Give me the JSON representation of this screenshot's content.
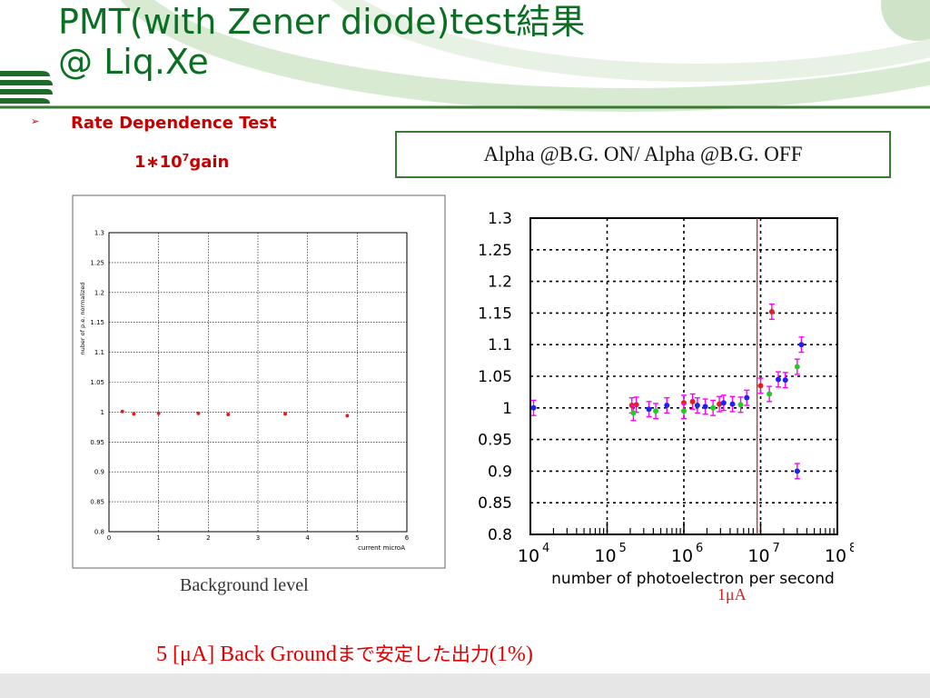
{
  "slide": {
    "title_line1": "PMT(with Zener diode)test結果",
    "title_line2": "@  Liq.Xe",
    "bullet_glyph": "➢",
    "subtitle": "Rate Dependence Test",
    "gain_prefix": "1∗10",
    "gain_exponent": "7",
    "gain_suffix": "gain",
    "note": "Alpha @B.G. ON/ Alpha @B.G. OFF",
    "background_caption": "Background level",
    "marker_caption": "1μA",
    "conclusion_prefix": "5 [μA] Back Ground",
    "conclusion_jp": "まで安定した出力",
    "conclusion_suffix": "(1%)"
  },
  "colors": {
    "title": "#0a6f22",
    "accent_red": "#c80000",
    "deco_green": "#1e6b2a",
    "deco_light": "#d9ead3"
  },
  "chart_data": [
    {
      "type": "scatter",
      "title": "",
      "xlabel": "current   microA",
      "ylabel": "nuber of p.e. normalized",
      "xlim": [
        0,
        6
      ],
      "ylim": [
        0.8,
        1.3
      ],
      "x_ticks": [
        "0",
        "1",
        "2",
        "3",
        "4",
        "5",
        "6"
      ],
      "y_ticks": [
        "0.8",
        "0.85",
        "0.9",
        "0.95",
        "1",
        "1.05",
        "1.1",
        "1.15",
        "1.2",
        "1.25",
        "1.3"
      ],
      "grid": true,
      "series": [
        {
          "color": "#e02020",
          "points": [
            {
              "x": 0.27,
              "y": 1.001
            },
            {
              "x": 0.5,
              "y": 0.997
            },
            {
              "x": 1.0,
              "y": 0.998
            },
            {
              "x": 1.8,
              "y": 0.998
            },
            {
              "x": 2.4,
              "y": 0.996
            },
            {
              "x": 3.55,
              "y": 0.997
            },
            {
              "x": 4.8,
              "y": 0.994
            }
          ]
        }
      ]
    },
    {
      "type": "scatter",
      "title": "",
      "xlabel": "number of photoelectron per second",
      "ylabel": "",
      "x_scale": "log",
      "xlim": [
        10000,
        100000000
      ],
      "ylim": [
        0.8,
        1.3
      ],
      "x_ticks": [
        {
          "base": "10",
          "exp": "4",
          "value": 10000
        },
        {
          "base": "10",
          "exp": "5",
          "value": 100000
        },
        {
          "base": "10",
          "exp": "6",
          "value": 1000000
        },
        {
          "base": "10",
          "exp": "7",
          "value": 10000000
        },
        {
          "base": "10",
          "exp": "8",
          "value": 100000000
        }
      ],
      "y_ticks": [
        "0.8",
        "0.85",
        "0.9",
        "0.95",
        "1",
        "1.05",
        "1.1",
        "1.15",
        "1.2",
        "1.25",
        "1.3"
      ],
      "grid": true,
      "reference_line": {
        "x": 9000000,
        "color": "#e02020"
      },
      "series": [
        {
          "color": "#e02020",
          "error_color": "#ff00ff",
          "points": [
            {
              "x": 210000,
              "y": 1.004,
              "err": 0.012
            },
            {
              "x": 240000,
              "y": 1.005,
              "err": 0.012
            },
            {
              "x": 1000000,
              "y": 1.008,
              "err": 0.012
            },
            {
              "x": 1300000,
              "y": 1.01,
              "err": 0.012
            },
            {
              "x": 2900000,
              "y": 1.006,
              "err": 0.012
            },
            {
              "x": 10000000,
              "y": 1.035,
              "err": 0.012
            },
            {
              "x": 14000000,
              "y": 1.152,
              "err": 0.012
            }
          ]
        },
        {
          "color": "#22cc22",
          "error_color": "#ff00ff",
          "points": [
            {
              "x": 220000,
              "y": 0.992,
              "err": 0.012
            },
            {
              "x": 430000,
              "y": 0.995,
              "err": 0.012
            },
            {
              "x": 1000000,
              "y": 0.995,
              "err": 0.012
            },
            {
              "x": 2400000,
              "y": 1.0,
              "err": 0.012
            },
            {
              "x": 5500000,
              "y": 1.005,
              "err": 0.012
            },
            {
              "x": 13000000,
              "y": 1.022,
              "err": 0.012
            },
            {
              "x": 30000000,
              "y": 1.065,
              "err": 0.012
            }
          ]
        },
        {
          "color": "#2222ee",
          "error_color": "#ff00ff",
          "points": [
            {
              "x": 11000,
              "y": 1.0,
              "err": 0.012
            },
            {
              "x": 350000,
              "y": 0.998,
              "err": 0.012
            },
            {
              "x": 600000,
              "y": 1.004,
              "err": 0.012
            },
            {
              "x": 1500000,
              "y": 1.004,
              "err": 0.012
            },
            {
              "x": 1900000,
              "y": 1.002,
              "err": 0.012
            },
            {
              "x": 3300000,
              "y": 1.008,
              "err": 0.012
            },
            {
              "x": 4300000,
              "y": 1.006,
              "err": 0.012
            },
            {
              "x": 6600000,
              "y": 1.016,
              "err": 0.012
            },
            {
              "x": 17000000,
              "y": 1.045,
              "err": 0.012
            },
            {
              "x": 21000000,
              "y": 1.044,
              "err": 0.012
            },
            {
              "x": 30000000,
              "y": 0.9,
              "err": 0.012
            },
            {
              "x": 34000000,
              "y": 1.1,
              "err": 0.012
            }
          ]
        }
      ]
    }
  ]
}
